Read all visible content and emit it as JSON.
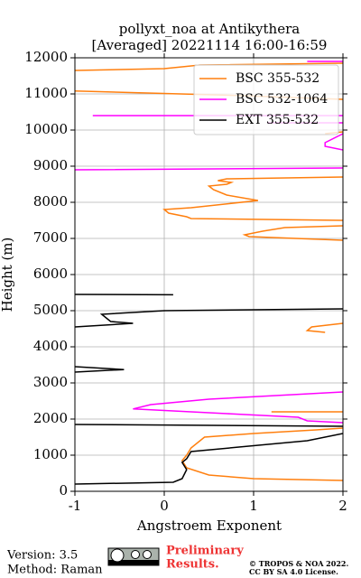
{
  "chart_data": {
    "type": "line",
    "title": [
      "pollyxt_noa at Antikythera",
      "[Averaged] 20221114 16:00-16:59"
    ],
    "x_label": "Angstroem Exponent",
    "y_label": "Height (m)",
    "xlim": [
      -1,
      2
    ],
    "ylim": [
      0,
      12000
    ],
    "xticks": [
      -1,
      0,
      1,
      2
    ],
    "yticks": [
      0,
      1000,
      2000,
      3000,
      4000,
      5000,
      6000,
      7000,
      8000,
      9000,
      10000,
      11000,
      12000
    ],
    "grid": true,
    "legend": "upper right",
    "series": [
      {
        "name": "BSC 355-532",
        "color": "#ff7f0e",
        "x": [
          2,
          1.0,
          0.5,
          0.25,
          0.2,
          0.25,
          0.3,
          0.45,
          1.0,
          1.7,
          2,
          null,
          1.2,
          2,
          null,
          1.8,
          1.6,
          1.65,
          2,
          null,
          2,
          0.95,
          0.9,
          1.1,
          1.35,
          2,
          null,
          2,
          0.3,
          0.25,
          0.05,
          0,
          0.3,
          1.05,
          0.7,
          0.55,
          0.5,
          0.7,
          0.75,
          0.6,
          0.7,
          2,
          null,
          1.8,
          2,
          null,
          2,
          0.9,
          -1,
          null,
          -1,
          0,
          0.4,
          2
        ],
        "values": [
          300,
          350,
          450,
          650,
          850,
          1000,
          1200,
          1500,
          1600,
          1700,
          1750,
          null,
          2200,
          2200,
          null,
          4400,
          4450,
          4550,
          4650,
          null,
          6950,
          7050,
          7100,
          7200,
          7300,
          7350,
          null,
          7500,
          7550,
          7600,
          7700,
          7800,
          7850,
          8050,
          8200,
          8350,
          8450,
          8500,
          8550,
          8600,
          8650,
          8700,
          null,
          9900,
          9950,
          null,
          10850,
          10950,
          11080,
          null,
          11650,
          11700,
          11800,
          11850
        ]
      },
      {
        "name": "BSC 532-1064",
        "color": "#ff00ff",
        "x": [
          2,
          1.6,
          1.5,
          0.7,
          -0.35,
          -0.15,
          0.5,
          2,
          null,
          -1,
          2,
          null,
          2,
          1.8,
          1.8,
          2,
          null,
          1.15,
          2,
          null,
          -0.8,
          2,
          null,
          1.6,
          2
        ],
        "values": [
          1900,
          1950,
          2050,
          2150,
          2280,
          2400,
          2550,
          2750,
          null,
          8900,
          8950,
          null,
          9450,
          9550,
          9650,
          9900,
          null,
          10200,
          10200,
          null,
          10400,
          10400,
          null,
          11900,
          11900
        ]
      },
      {
        "name": "EXT 355-532",
        "color": "#000000",
        "x": [
          -1,
          0.1,
          0.2,
          0.25,
          0.2,
          0.25,
          0.3,
          1.6,
          2,
          null,
          -1,
          2,
          null,
          -1,
          -0.45,
          -1,
          null,
          -1,
          -0.35,
          -0.6,
          -0.7,
          0,
          2,
          null,
          -1,
          0.1
        ],
        "values": [
          200,
          250,
          350,
          600,
          800,
          900,
          1100,
          1400,
          1600,
          null,
          1850,
          1800,
          null,
          3300,
          3370,
          3450,
          null,
          4550,
          4650,
          4700,
          4900,
          5000,
          5050,
          null,
          5450,
          5440
        ]
      }
    ]
  },
  "footer": {
    "version": "Version: 3.5",
    "method": "Method: Raman",
    "preliminary": "Preliminary",
    "results": "Results.",
    "copyright": "© TROPOS & NOA 2022.",
    "license": "CC BY SA 4.0 License."
  }
}
